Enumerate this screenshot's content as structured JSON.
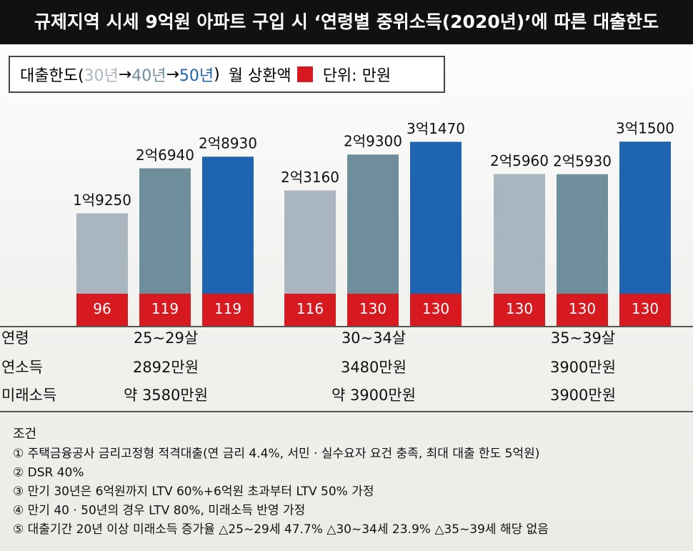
{
  "chart_data": {
    "type": "bar",
    "title": "규제지역 시세 9억원 아파트 구입 시 ‘연령별 중위소득(2020년)’에 따른 대출한도",
    "legend": {
      "prefix": "대출한도(",
      "separator": "→",
      "suffix": ")",
      "repayment_label": "월 상환액",
      "unit": "단위: 만원"
    },
    "categories": [
      "25~29살",
      "30~34살",
      "35~39살"
    ],
    "series": [
      {
        "name": "30년",
        "color": "#a9b5bf",
        "values": [
          19250,
          23160,
          25960
        ],
        "value_labels": [
          "1억9250",
          "2억3160",
          "2억5960"
        ],
        "repayment": [
          96,
          116,
          130
        ]
      },
      {
        "name": "40년",
        "color": "#6e8e9c",
        "values": [
          26940,
          29300,
          25930
        ],
        "value_labels": [
          "2억6940",
          "2억9300",
          "2억5930"
        ],
        "repayment": [
          119,
          130,
          130
        ]
      },
      {
        "name": "50년",
        "color": "#1f64b1",
        "values": [
          28930,
          31470,
          31500
        ],
        "value_labels": [
          "2억8930",
          "3억1470",
          "3억1500"
        ],
        "repayment": [
          119,
          130,
          130
        ]
      }
    ],
    "repayment_color": "#d71920",
    "ylim": [
      0,
      38000
    ],
    "row_labels": [
      "연령",
      "연소득",
      "미래소득"
    ],
    "income": [
      "2892만원",
      "3480만원",
      "3900만원"
    ],
    "future_income": [
      "약 3580만원",
      "약 3900만원",
      "3900만원"
    ],
    "notes_title": "조건",
    "notes": [
      "① 주택금융공사 금리고정형 적격대출(연 금리 4.4%, 서민 · 실수요자 요건 충족, 최대 대출 한도 5억원)",
      "② DSR 40%",
      "③ 만기 30년은 6억원까지 LTV 60%+6억원 초과부터 LTV 50% 가정",
      "④ 만기 40 · 50년의 경우 LTV 80%, 미래소득 반영 가정",
      "⑤ 대출기간 20년 이상 미래소득 증가율 △25~29세 47.7% △30~34세 23.9% △35~39세 해당 없음"
    ]
  }
}
